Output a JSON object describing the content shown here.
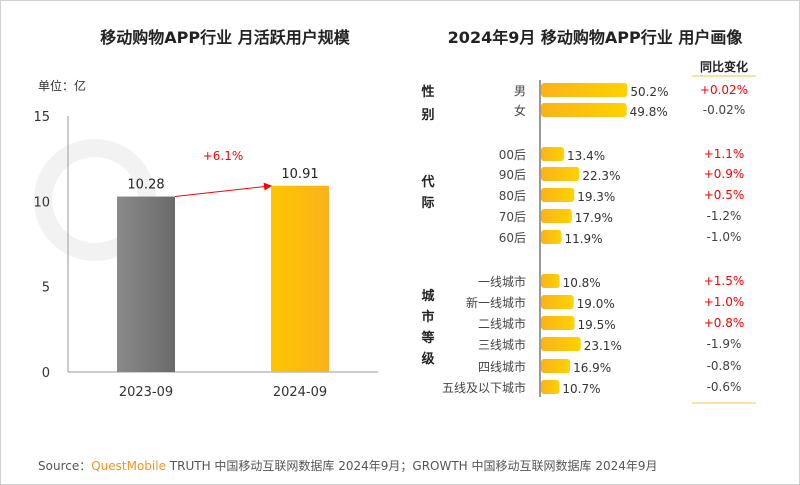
{
  "watermark": "QUESTMOBILE",
  "colors": {
    "gray_bar": "#7a7a7a",
    "yellow_bar": "#fdb913",
    "positive": "#ff0000",
    "negative": "#404040",
    "brand": "#f7931e"
  },
  "source": {
    "prefix": "Source：",
    "brand": "QuestMobile",
    "text": " TRUTH 中国移动互联网数据库 2024年9月；GROWTH 中国移动互联网数据库 2024年9月"
  },
  "chart_data": [
    {
      "type": "bar",
      "title": "移动购物APP行业 月活跃用户规模",
      "unit_label": "单位：亿",
      "categories": [
        "2023-09",
        "2024-09"
      ],
      "values": [
        10.28,
        10.91
      ],
      "ylim": [
        0,
        15
      ],
      "yticks": [
        "0",
        "5",
        "10",
        "15"
      ],
      "annotation": "+6.1%",
      "grid": false
    },
    {
      "type": "bar",
      "orientation": "horizontal",
      "title": "2024年9月 移动购物APP行业 用户画像",
      "change_header": "同比变化",
      "groups": [
        {
          "name": "性别",
          "items": [
            {
              "label": "男",
              "value": 50.2,
              "value_label": "50.2%",
              "change": "+0.02%"
            },
            {
              "label": "女",
              "value": 49.8,
              "value_label": "49.8%",
              "change": "-0.02%"
            }
          ]
        },
        {
          "name": "代际",
          "items": [
            {
              "label": "00后",
              "value": 13.4,
              "value_label": "13.4%",
              "change": "+1.1%"
            },
            {
              "label": "90后",
              "value": 22.3,
              "value_label": "22.3%",
              "change": "+0.9%"
            },
            {
              "label": "80后",
              "value": 19.3,
              "value_label": "19.3%",
              "change": "+0.5%"
            },
            {
              "label": "70后",
              "value": 17.9,
              "value_label": "17.9%",
              "change": "-1.2%"
            },
            {
              "label": "60后",
              "value": 11.9,
              "value_label": "11.9%",
              "change": "-1.0%"
            }
          ]
        },
        {
          "name": "城市等级",
          "items": [
            {
              "label": "一线城市",
              "value": 10.8,
              "value_label": "10.8%",
              "change": "+1.5%"
            },
            {
              "label": "新一线城市",
              "value": 19.0,
              "value_label": "19.0%",
              "change": "+1.0%"
            },
            {
              "label": "二线城市",
              "value": 19.5,
              "value_label": "19.5%",
              "change": "+0.8%"
            },
            {
              "label": "三线城市",
              "value": 23.1,
              "value_label": "23.1%",
              "change": "-1.9%"
            },
            {
              "label": "四线城市",
              "value": 16.9,
              "value_label": "16.9%",
              "change": "-0.8%"
            },
            {
              "label": "五线及以下城市",
              "value": 10.7,
              "value_label": "10.7%",
              "change": "-0.6%"
            }
          ]
        }
      ]
    }
  ]
}
